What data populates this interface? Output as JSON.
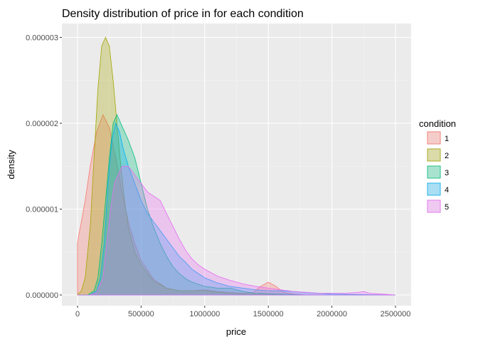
{
  "chart_data": {
    "type": "area",
    "title": "Density distribution of price in for each condition",
    "xlabel": "price",
    "ylabel": "density",
    "xlim": [
      0,
      2500000
    ],
    "ylim": [
      0,
      3.1e-06
    ],
    "x_ticks": [
      0,
      500000,
      1000000,
      1500000,
      2000000,
      2500000
    ],
    "x_tick_labels": [
      "0",
      "500000",
      "1000000",
      "1500000",
      "2000000",
      "2500000"
    ],
    "y_ticks": [
      0,
      1e-06,
      2e-06,
      3e-06
    ],
    "y_tick_labels": [
      "0.000000",
      "0.000001",
      "0.000002",
      "0.000003"
    ],
    "grid": true,
    "legend_title": "condition",
    "legend_position": "right",
    "series": [
      {
        "name": "1",
        "color": "#F8766D",
        "x": [
          0,
          10000,
          30000,
          60000,
          100000,
          150000,
          200000,
          250000,
          300000,
          350000,
          400000,
          450000,
          500000,
          600000,
          700000,
          800000,
          900000,
          1000000,
          1100000,
          1200000,
          1300000,
          1380000,
          1440000,
          1500000,
          1560000,
          1620000,
          1700000,
          1800000,
          2000000,
          2200000,
          2400000,
          2500000
        ],
        "values": [
          6e-07,
          7e-07,
          8.5e-07,
          1.1e-06,
          1.5e-06,
          1.9e-06,
          2.1e-06,
          1.95e-06,
          1.6e-06,
          1.2e-06,
          8.5e-07,
          6e-07,
          4e-07,
          1.8e-07,
          8e-08,
          5e-08,
          5e-08,
          6e-08,
          4e-08,
          3e-08,
          2e-08,
          3e-08,
          1e-07,
          1.5e-07,
          1e-07,
          3e-08,
          1e-08,
          0.0,
          0.0,
          0.0,
          0.0,
          0.0
        ]
      },
      {
        "name": "2",
        "color": "#A3A500",
        "x": [
          0,
          30000,
          60000,
          100000,
          130000,
          160000,
          190000,
          220000,
          250000,
          280000,
          310000,
          340000,
          370000,
          400000,
          450000,
          500000,
          550000,
          600000,
          700000,
          800000,
          900000,
          1000000,
          1100000,
          1200000,
          1300000,
          1500000,
          1800000,
          2100000,
          2500000
        ],
        "values": [
          0.0,
          5e-08,
          2e-07,
          8e-07,
          1.6e-06,
          2.4e-06,
          2.9e-06,
          3e-06,
          2.9e-06,
          2.5e-06,
          2e-06,
          1.5e-06,
          1.1e-06,
          7.8e-07,
          5e-07,
          3.5e-07,
          2.5e-07,
          1.6e-07,
          8e-08,
          5e-08,
          5e-08,
          5e-08,
          3e-08,
          2e-08,
          1e-08,
          1e-08,
          0.0,
          0.0,
          0.0
        ]
      },
      {
        "name": "3",
        "color": "#00BF7D",
        "x": [
          0,
          80000,
          130000,
          160000,
          190000,
          220000,
          250000,
          280000,
          310000,
          340000,
          370000,
          400000,
          450000,
          500000,
          550000,
          600000,
          650000,
          700000,
          750000,
          800000,
          850000,
          900000,
          1000000,
          1100000,
          1200000,
          1250000,
          1300000,
          1400000,
          1600000,
          1800000,
          2000000,
          2500000
        ],
        "values": [
          0.0,
          0.0,
          5e-08,
          2e-07,
          6e-07,
          1.1e-06,
          1.6e-06,
          2e-06,
          2.1e-06,
          2e-06,
          1.9e-06,
          1.8e-06,
          1.6e-06,
          1.3e-06,
          1e-06,
          7.8e-07,
          6e-07,
          4.5e-07,
          3.3e-07,
          2.5e-07,
          1.9e-07,
          1.5e-07,
          1e-07,
          8e-08,
          8e-08,
          6e-08,
          4e-08,
          2e-08,
          1e-08,
          0.0,
          0.0,
          0.0
        ]
      },
      {
        "name": "4",
        "color": "#00B0F6",
        "x": [
          0,
          100000,
          150000,
          180000,
          210000,
          240000,
          270000,
          300000,
          330000,
          360000,
          400000,
          450000,
          500000,
          550000,
          600000,
          650000,
          700000,
          750000,
          800000,
          850000,
          900000,
          950000,
          1000000,
          1100000,
          1200000,
          1300000,
          1400000,
          1500000,
          1600000,
          1700000,
          1800000,
          2000000,
          2500000
        ],
        "values": [
          0.0,
          0.0,
          5e-08,
          2e-07,
          6e-07,
          1.3e-06,
          1.8e-06,
          2e-06,
          1.9e-06,
          1.7e-06,
          1.5e-06,
          1.3e-06,
          1.1e-06,
          9.5e-07,
          8.5e-07,
          7.5e-07,
          6.5e-07,
          5.5e-07,
          4.5e-07,
          3.8e-07,
          3e-07,
          2.5e-07,
          2e-07,
          1.4e-07,
          1e-07,
          8e-08,
          6e-08,
          5e-08,
          5e-08,
          4e-08,
          3e-08,
          1e-08,
          0.0
        ]
      },
      {
        "name": "5",
        "color": "#E76BF3",
        "x": [
          0,
          100000,
          150000,
          200000,
          230000,
          260000,
          290000,
          320000,
          350000,
          400000,
          450000,
          500000,
          550000,
          600000,
          650000,
          700000,
          750000,
          800000,
          850000,
          900000,
          950000,
          1000000,
          1100000,
          1200000,
          1300000,
          1400000,
          1500000,
          1600000,
          1700000,
          1800000,
          1900000,
          2000000,
          2100000,
          2200000,
          2250000,
          2300000,
          2400000,
          2500000
        ],
        "values": [
          0.0,
          0.0,
          3e-08,
          2e-07,
          6e-07,
          1e-06,
          1.3e-06,
          1.4e-06,
          1.5e-06,
          1.5e-06,
          1.4e-06,
          1.3e-06,
          1.2e-06,
          1.15e-06,
          1.1e-06,
          9.5e-07,
          8e-07,
          6.5e-07,
          5.2e-07,
          4.2e-07,
          3.5e-07,
          3e-07,
          2.2e-07,
          1.7e-07,
          1.3e-07,
          1e-07,
          8e-08,
          6e-08,
          4e-08,
          3e-08,
          2e-08,
          2e-08,
          2e-08,
          3e-08,
          4e-08,
          2e-08,
          1e-08,
          0.0
        ]
      }
    ]
  }
}
